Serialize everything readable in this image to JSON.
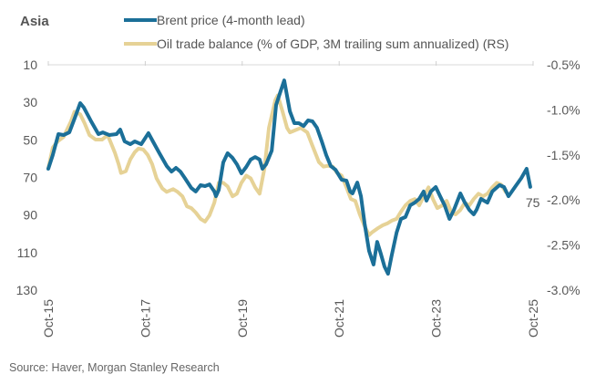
{
  "chart_data": {
    "type": "line",
    "title": "Asia",
    "source": "Source: Haver, Morgan Stanley Research",
    "x_axis": {
      "type": "time",
      "unit": "months since Oct-2015",
      "range": [
        0,
        120
      ],
      "tick_labels": [
        "Oct-15",
        "Oct-17",
        "Oct-19",
        "Oct-21",
        "Oct-23",
        "Oct-25"
      ],
      "tick_months": [
        0,
        24,
        48,
        72,
        96,
        120
      ]
    },
    "y_left": {
      "label": "",
      "inverted": true,
      "range": [
        10,
        130
      ],
      "ticks": [
        10,
        30,
        50,
        70,
        90,
        110,
        130
      ],
      "tick_labels": [
        "10",
        "30",
        "50",
        "70",
        "90",
        "110",
        "130"
      ]
    },
    "y_right": {
      "label": "",
      "range": [
        -0.5,
        -3.0
      ],
      "ticks": [
        -0.5,
        -1.0,
        -1.5,
        -2.0,
        -2.5,
        -3.0
      ],
      "tick_labels": [
        "-0.5%",
        "-1.0%",
        "-1.5%",
        "-2.0%",
        "-2.5%",
        "-3.0%"
      ]
    },
    "grid": false,
    "legend_position": "top",
    "series": [
      {
        "name": "Brent price (4-month lead)",
        "axis": "left",
        "color": "#1b6f98",
        "end_label": "75",
        "points": [
          [
            0,
            65.4
          ],
          [
            1.1,
            58.1
          ],
          [
            2.5,
            46.9
          ],
          [
            3.8,
            47.4
          ],
          [
            5.2,
            46.0
          ],
          [
            6.5,
            38.7
          ],
          [
            7.9,
            30.4
          ],
          [
            8.8,
            32.8
          ],
          [
            10.6,
            40.1
          ],
          [
            12.4,
            46.9
          ],
          [
            13.5,
            46.0
          ],
          [
            15.1,
            47.4
          ],
          [
            16.9,
            46.9
          ],
          [
            17.8,
            44.5
          ],
          [
            18.9,
            50.8
          ],
          [
            20.3,
            52.3
          ],
          [
            21.4,
            50.8
          ],
          [
            23.0,
            52.3
          ],
          [
            24.8,
            46.4
          ],
          [
            25.9,
            50.8
          ],
          [
            27.5,
            57.1
          ],
          [
            29.3,
            63.9
          ],
          [
            30.5,
            66.9
          ],
          [
            31.6,
            64.9
          ],
          [
            32.7,
            66.9
          ],
          [
            33.8,
            70.3
          ],
          [
            35.4,
            75.6
          ],
          [
            36.5,
            77.5
          ],
          [
            37.7,
            74.1
          ],
          [
            38.8,
            74.6
          ],
          [
            39.9,
            73.7
          ],
          [
            41.1,
            77.5
          ],
          [
            41.5,
            80.0
          ],
          [
            42.2,
            76.6
          ],
          [
            43.3,
            62.0
          ],
          [
            44.4,
            57.1
          ],
          [
            45.6,
            59.6
          ],
          [
            46.7,
            63.0
          ],
          [
            47.8,
            67.8
          ],
          [
            49.0,
            64.4
          ],
          [
            50.1,
            60.5
          ],
          [
            51.2,
            59.1
          ],
          [
            52.3,
            60.5
          ],
          [
            53.0,
            65.4
          ],
          [
            53.9,
            63.0
          ],
          [
            55.3,
            55.7
          ],
          [
            56.4,
            31.4
          ],
          [
            57.5,
            24.1
          ],
          [
            58.4,
            18.3
          ],
          [
            59.8,
            34.8
          ],
          [
            60.9,
            41.1
          ],
          [
            62.0,
            41.1
          ],
          [
            63.2,
            42.6
          ],
          [
            64.3,
            39.6
          ],
          [
            65.4,
            40.1
          ],
          [
            66.5,
            43.5
          ],
          [
            67.7,
            50.8
          ],
          [
            68.8,
            58.1
          ],
          [
            69.9,
            63.9
          ],
          [
            71.1,
            65.9
          ],
          [
            72.6,
            71.2
          ],
          [
            73.8,
            71.7
          ],
          [
            74.7,
            77.5
          ],
          [
            75.3,
            78.5
          ],
          [
            76.5,
            72.7
          ],
          [
            77.4,
            80.0
          ],
          [
            78.3,
            94.5
          ],
          [
            79.4,
            109.1
          ],
          [
            80.5,
            116.4
          ],
          [
            81.4,
            104.3
          ],
          [
            82.3,
            110.6
          ],
          [
            83.2,
            117.4
          ],
          [
            84.1,
            121.3
          ],
          [
            85.0,
            111.6
          ],
          [
            86.2,
            99.4
          ],
          [
            87.3,
            92.1
          ],
          [
            88.4,
            91.1
          ],
          [
            89.6,
            84.8
          ],
          [
            90.7,
            83.4
          ],
          [
            91.8,
            81.4
          ],
          [
            92.9,
            77.5
          ],
          [
            93.6,
            82.4
          ],
          [
            94.7,
            77.5
          ],
          [
            95.9,
            75.1
          ],
          [
            97.0,
            80.0
          ],
          [
            98.1,
            84.8
          ],
          [
            99.3,
            92.1
          ],
          [
            100.4,
            87.3
          ],
          [
            102.0,
            78.5
          ],
          [
            103.1,
            83.4
          ],
          [
            104.2,
            87.3
          ],
          [
            105.3,
            89.7
          ],
          [
            106.0,
            87.3
          ],
          [
            107.1,
            81.4
          ],
          [
            108.7,
            83.4
          ],
          [
            109.9,
            77.5
          ],
          [
            111.7,
            74.1
          ],
          [
            112.8,
            75.1
          ],
          [
            113.9,
            80.0
          ],
          [
            115.5,
            75.1
          ],
          [
            117.1,
            70.3
          ],
          [
            118.4,
            65.4
          ],
          [
            119.3,
            75.0
          ]
        ]
      },
      {
        "name": "Oil trade balance (% of GDP, 3M trailing sum annualized) (RS)",
        "axis": "right",
        "color": "#e6d296",
        "points": [
          [
            0,
            -1.65
          ],
          [
            1.1,
            -1.42
          ],
          [
            2.3,
            -1.35
          ],
          [
            3.8,
            -1.3
          ],
          [
            5.6,
            -1.13
          ],
          [
            6.5,
            -1.02
          ],
          [
            7.9,
            -1.05
          ],
          [
            9.0,
            -1.15
          ],
          [
            10.2,
            -1.28
          ],
          [
            11.7,
            -1.33
          ],
          [
            13.3,
            -1.33
          ],
          [
            14.7,
            -1.28
          ],
          [
            15.6,
            -1.38
          ],
          [
            16.5,
            -1.48
          ],
          [
            17.4,
            -1.6
          ],
          [
            18.0,
            -1.7
          ],
          [
            19.2,
            -1.68
          ],
          [
            20.3,
            -1.55
          ],
          [
            21.4,
            -1.47
          ],
          [
            22.3,
            -1.43
          ],
          [
            23.5,
            -1.44
          ],
          [
            24.6,
            -1.5
          ],
          [
            25.7,
            -1.6
          ],
          [
            26.8,
            -1.76
          ],
          [
            28.2,
            -1.87
          ],
          [
            29.3,
            -1.91
          ],
          [
            30.9,
            -1.88
          ],
          [
            32.0,
            -1.91
          ],
          [
            33.2,
            -1.96
          ],
          [
            34.3,
            -2.07
          ],
          [
            35.4,
            -2.09
          ],
          [
            36.5,
            -2.14
          ],
          [
            37.7,
            -2.21
          ],
          [
            38.8,
            -2.24
          ],
          [
            39.9,
            -2.17
          ],
          [
            41.1,
            -2.03
          ],
          [
            42.2,
            -1.81
          ],
          [
            43.3,
            -1.81
          ],
          [
            44.4,
            -1.85
          ],
          [
            45.6,
            -1.96
          ],
          [
            46.7,
            -1.93
          ],
          [
            47.8,
            -1.81
          ],
          [
            49.0,
            -1.73
          ],
          [
            50.1,
            -1.76
          ],
          [
            51.2,
            -1.86
          ],
          [
            52.3,
            -1.93
          ],
          [
            53.5,
            -1.65
          ],
          [
            54.6,
            -1.2
          ],
          [
            56.2,
            -0.89
          ],
          [
            56.8,
            -0.84
          ],
          [
            58.0,
            -1.02
          ],
          [
            59.1,
            -1.2
          ],
          [
            59.8,
            -1.25
          ],
          [
            60.9,
            -1.23
          ],
          [
            62.5,
            -1.2
          ],
          [
            64.1,
            -1.25
          ],
          [
            65.4,
            -1.4
          ],
          [
            67.0,
            -1.58
          ],
          [
            68.1,
            -1.63
          ],
          [
            69.3,
            -1.62
          ],
          [
            70.4,
            -1.63
          ],
          [
            71.5,
            -1.7
          ],
          [
            72.6,
            -1.73
          ],
          [
            73.8,
            -1.86
          ],
          [
            74.9,
            -1.99
          ],
          [
            76.0,
            -2.01
          ],
          [
            77.1,
            -2.16
          ],
          [
            78.3,
            -2.29
          ],
          [
            79.4,
            -2.39
          ],
          [
            80.1,
            -2.36
          ],
          [
            81.7,
            -2.31
          ],
          [
            82.8,
            -2.28
          ],
          [
            83.9,
            -2.26
          ],
          [
            85.0,
            -2.23
          ],
          [
            86.2,
            -2.21
          ],
          [
            87.3,
            -2.13
          ],
          [
            88.4,
            -2.06
          ],
          [
            89.6,
            -2.01
          ],
          [
            90.7,
            -1.99
          ],
          [
            91.8,
            -2.06
          ],
          [
            92.9,
            -1.96
          ],
          [
            94.1,
            -1.86
          ],
          [
            95.2,
            -1.99
          ],
          [
            96.3,
            -2.09
          ],
          [
            97.5,
            -2.06
          ],
          [
            98.6,
            -2.01
          ],
          [
            99.7,
            -2.13
          ],
          [
            100.8,
            -2.16
          ],
          [
            102.0,
            -2.11
          ],
          [
            103.1,
            -2.03
          ],
          [
            104.2,
            -2.06
          ],
          [
            105.3,
            -1.99
          ],
          [
            106.5,
            -1.93
          ],
          [
            107.6,
            -1.96
          ],
          [
            108.7,
            -1.93
          ],
          [
            109.9,
            -1.86
          ],
          [
            111.0,
            -1.81
          ],
          [
            112.1,
            -1.83
          ],
          [
            113.2,
            -1.91
          ]
        ]
      }
    ]
  }
}
